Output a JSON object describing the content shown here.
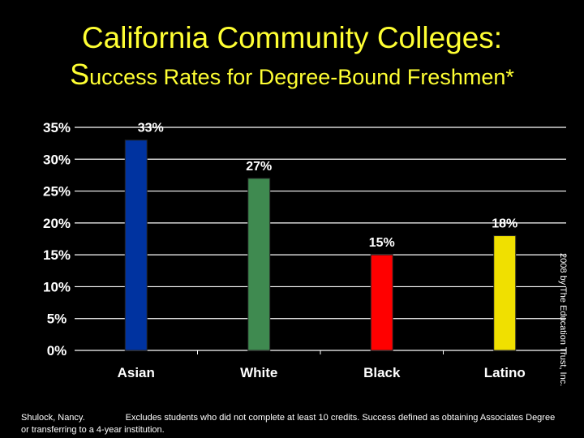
{
  "title": {
    "first_letter": "S",
    "line1": "California Community Colleges:",
    "line2_rest": "uccess Rates for Degree-Bound Freshmen*"
  },
  "copyright": "2008 by The Education Trust, Inc.",
  "footnote": {
    "source": "Shulock, Nancy.",
    "text": "Excludes students who did not complete at least 10 credits.  Success defined as obtaining Associates Degree or transferring to a 4-year institution."
  },
  "colors": {
    "background": "#000000",
    "title": "#FFFF33",
    "text": "#FFFFFF"
  },
  "chart_data": {
    "type": "bar",
    "title": "California Community Colleges: Success Rates for Degree-Bound Freshmen*",
    "categories": [
      "Asian",
      "White",
      "Black",
      "Latino"
    ],
    "values": [
      33,
      27,
      15,
      18
    ],
    "value_labels": [
      "33%",
      "27%",
      "15%",
      "18%"
    ],
    "colors": [
      "#0033A0",
      "#3F8A50",
      "#FF0000",
      "#F0E000"
    ],
    "ylim": [
      0,
      35
    ],
    "yticks": [
      0,
      5,
      10,
      15,
      20,
      25,
      30,
      35
    ],
    "ytick_labels": [
      "0%",
      "5%",
      "10%",
      "15%",
      "20%",
      "25%",
      "30%",
      "35%"
    ],
    "grid": true,
    "legend": "none",
    "xlabel": "",
    "ylabel": ""
  }
}
